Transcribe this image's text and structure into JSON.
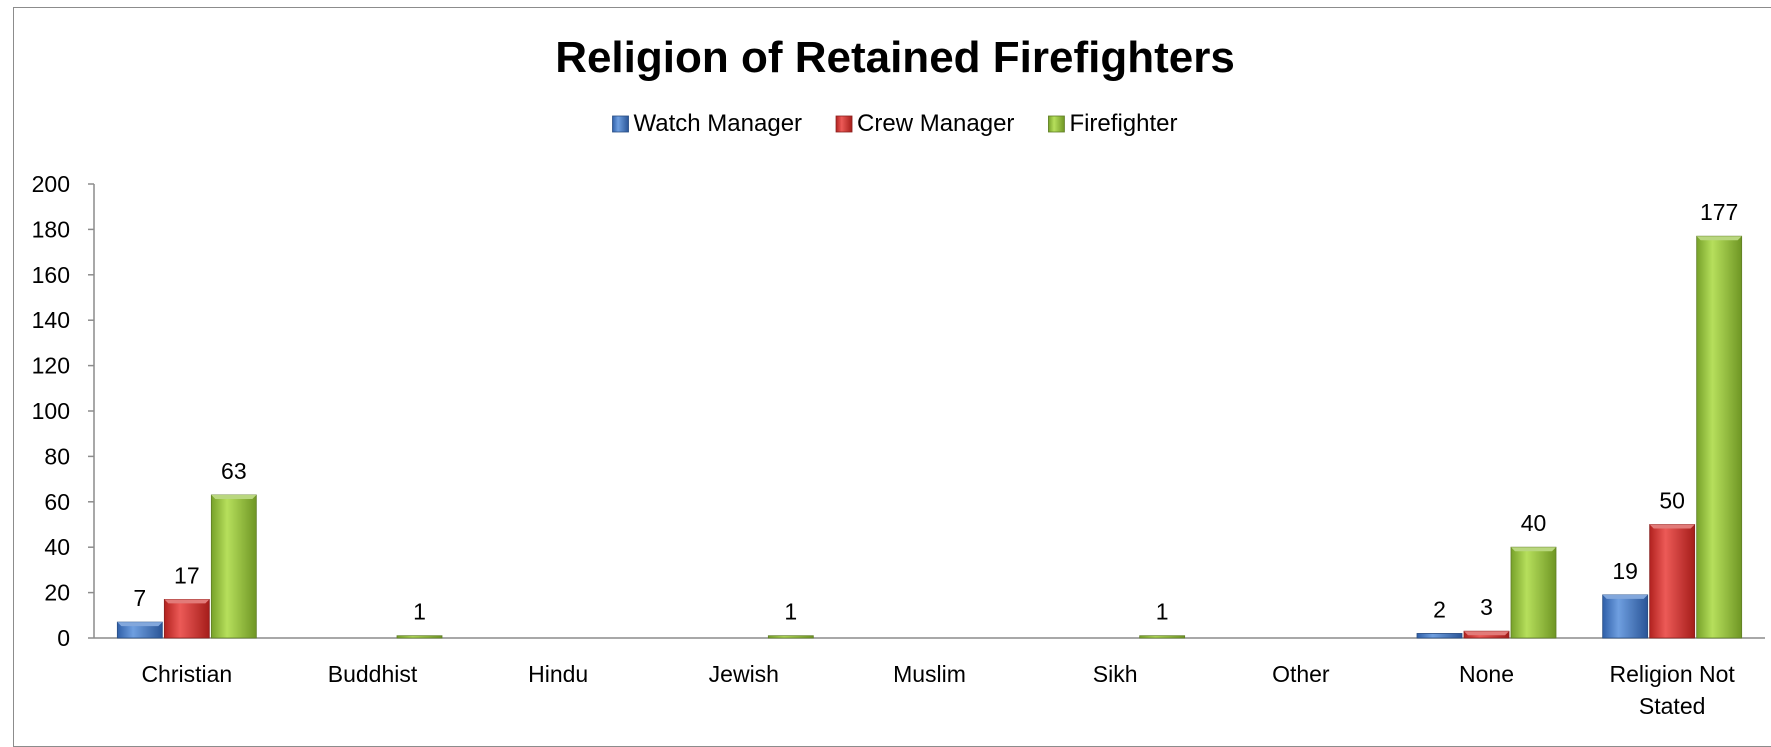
{
  "colors": {
    "watch_manager": "#3f77c9",
    "crew_manager": "#d23431",
    "firefighter": "#93c13a"
  },
  "chart_data": {
    "type": "bar",
    "title": "Religion of Retained Firefighters",
    "xlabel": "",
    "ylabel": "",
    "ylim": [
      0,
      200
    ],
    "ytick_step": 20,
    "yticks": [
      0,
      20,
      40,
      60,
      80,
      100,
      120,
      140,
      160,
      180,
      200
    ],
    "grid": false,
    "legend_position": "top",
    "categories": [
      "Christian",
      "Buddhist",
      "Hindu",
      "Jewish",
      "Muslim",
      "Sikh",
      "Other",
      "None",
      "Religion Not Stated"
    ],
    "series": [
      {
        "name": "Watch Manager",
        "color_key": "watch_manager",
        "values": [
          7,
          0,
          0,
          0,
          0,
          0,
          0,
          2,
          19
        ],
        "labels": [
          "7",
          "",
          "",
          "",
          "",
          "",
          "",
          "2",
          "19"
        ]
      },
      {
        "name": "Crew Manager",
        "color_key": "crew_manager",
        "values": [
          17,
          0,
          0,
          0,
          0,
          0,
          0,
          3,
          50
        ],
        "labels": [
          "17",
          "",
          "",
          "",
          "",
          "",
          "",
          "3",
          "50"
        ]
      },
      {
        "name": "Firefighter",
        "color_key": "firefighter",
        "values": [
          63,
          1,
          0,
          1,
          0,
          1,
          0,
          40,
          177
        ],
        "labels": [
          "63",
          "1",
          "",
          "1",
          "",
          "1",
          "",
          "40",
          "177"
        ]
      }
    ]
  }
}
